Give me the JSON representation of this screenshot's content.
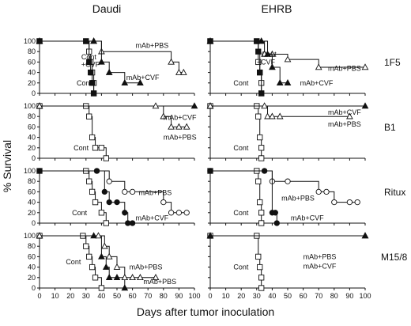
{
  "figure": {
    "column_titles": [
      "Daudi",
      "EHRB"
    ],
    "row_labels": [
      "1F5",
      "B1",
      "Ritux",
      "M15/8"
    ],
    "ylabel": "% Survival",
    "xlabel": "Days after tumor inoculation",
    "x_ticks": [
      "0",
      "10",
      "20",
      "30",
      "40",
      "50",
      "60",
      "70",
      "80",
      "90",
      "100"
    ],
    "y_ticks": [
      "0",
      "20",
      "40",
      "60",
      "80",
      "100"
    ]
  },
  "chart_data": [
    {
      "type": "line",
      "column": "Daudi",
      "row": "1F5",
      "xlim": [
        0,
        100
      ],
      "ylim": [
        0,
        100
      ],
      "series": [
        {
          "name": "Cont",
          "marker": "open-square",
          "x": [
            0,
            30,
            32,
            33,
            34,
            35,
            35
          ],
          "y": [
            100,
            100,
            80,
            60,
            40,
            20,
            0
          ]
        },
        {
          "name": "Cont +CVF",
          "marker": "filled-square",
          "x": [
            0,
            30,
            32,
            33,
            34,
            35
          ],
          "y": [
            100,
            100,
            60,
            40,
            20,
            0
          ]
        },
        {
          "name": "mAb+PBS",
          "marker": "open-triangle",
          "x": [
            0,
            35,
            40,
            85,
            90,
            93
          ],
          "y": [
            100,
            100,
            80,
            60,
            40,
            40
          ]
        },
        {
          "name": "mAb+CVF",
          "marker": "filled-triangle",
          "x": [
            0,
            35,
            40,
            45,
            55,
            65
          ],
          "y": [
            100,
            100,
            60,
            40,
            20,
            20
          ]
        }
      ],
      "labels": [
        {
          "text": "Cont",
          "x": 24,
          "y": 20
        },
        {
          "text": "Cont",
          "x": 27,
          "y": 70
        },
        {
          "text": "+CVF",
          "x": 27,
          "y": 55
        },
        {
          "text": "mAb+PBS",
          "x": 62,
          "y": 92
        },
        {
          "text": "mAb+CVF",
          "x": 56,
          "y": 30
        }
      ]
    },
    {
      "type": "line",
      "column": "EHRB",
      "row": "1F5",
      "xlim": [
        0,
        100
      ],
      "ylim": [
        0,
        100
      ],
      "series": [
        {
          "name": "Cont",
          "marker": "open-square",
          "x": [
            0,
            30,
            31,
            32,
            33,
            33
          ],
          "y": [
            100,
            100,
            60,
            40,
            20,
            0
          ]
        },
        {
          "name": "Cont +CVF",
          "marker": "filled-square",
          "x": [
            0,
            30,
            31,
            32,
            33
          ],
          "y": [
            100,
            100,
            80,
            40,
            0
          ]
        },
        {
          "name": "mAb+PBS",
          "marker": "open-triangle",
          "x": [
            0,
            33,
            35,
            40,
            50,
            70,
            100
          ],
          "y": [
            100,
            100,
            75,
            75,
            65,
            50,
            50
          ]
        },
        {
          "name": "mAb+CVF",
          "marker": "filled-triangle",
          "x": [
            0,
            33,
            37,
            40,
            45,
            50
          ],
          "y": [
            100,
            100,
            75,
            50,
            20,
            20
          ]
        }
      ],
      "labels": [
        {
          "text": "Cont",
          "x": 15,
          "y": 20
        },
        {
          "text": "Cont",
          "x": 33,
          "y": 75
        },
        {
          "text": "+CVF",
          "x": 30,
          "y": 60
        },
        {
          "text": "mAb+PBS",
          "x": 76,
          "y": 48
        },
        {
          "text": "mAb+CVF",
          "x": 58,
          "y": 20
        }
      ]
    },
    {
      "type": "line",
      "column": "Daudi",
      "row": "B1",
      "xlim": [
        0,
        100
      ],
      "ylim": [
        0,
        100
      ],
      "series": [
        {
          "name": "Cont",
          "marker": "open-square",
          "x": [
            0,
            30,
            32,
            34,
            36,
            40,
            43
          ],
          "y": [
            100,
            100,
            80,
            40,
            20,
            20,
            0
          ]
        },
        {
          "name": "mAb+CVF",
          "marker": "filled-triangle",
          "x": [
            0,
            100
          ],
          "y": [
            100,
            100
          ]
        },
        {
          "name": "mAb+PBS",
          "marker": "open-triangle",
          "x": [
            0,
            75,
            80,
            85,
            90,
            95
          ],
          "y": [
            100,
            100,
            80,
            60,
            60,
            60
          ]
        }
      ],
      "labels": [
        {
          "text": "Cont",
          "x": 22,
          "y": 20
        },
        {
          "text": "mAb+CVF",
          "x": 80,
          "y": 78
        },
        {
          "text": "mAb+PBS",
          "x": 80,
          "y": 40
        }
      ]
    },
    {
      "type": "line",
      "column": "EHRB",
      "row": "B1",
      "xlim": [
        0,
        100
      ],
      "ylim": [
        0,
        100
      ],
      "series": [
        {
          "name": "Cont",
          "marker": "open-square",
          "x": [
            0,
            30,
            31,
            32,
            33,
            33
          ],
          "y": [
            100,
            100,
            80,
            40,
            20,
            0
          ]
        },
        {
          "name": "mAb+CVF",
          "marker": "filled-triangle",
          "x": [
            0,
            100
          ],
          "y": [
            100,
            100
          ]
        },
        {
          "name": "mAb+PBS",
          "marker": "open-triangle",
          "x": [
            0,
            35,
            37,
            40,
            45,
            90
          ],
          "y": [
            100,
            100,
            80,
            80,
            80,
            80
          ]
        }
      ],
      "labels": [
        {
          "text": "Cont",
          "x": 15,
          "y": 20
        },
        {
          "text": "mAb+CVF",
          "x": 76,
          "y": 88
        },
        {
          "text": "mAb+PBS",
          "x": 76,
          "y": 65
        }
      ]
    },
    {
      "type": "line",
      "column": "Daudi",
      "row": "Ritux",
      "xlim": [
        0,
        100
      ],
      "ylim": [
        0,
        100
      ],
      "series": [
        {
          "name": "Cont",
          "marker": "open-square",
          "x": [
            0,
            30,
            32,
            34,
            36,
            40,
            43
          ],
          "y": [
            100,
            100,
            80,
            60,
            40,
            20,
            0
          ]
        },
        {
          "name": "mAb+PBS",
          "marker": "open-circle",
          "x": [
            0,
            37,
            45,
            55,
            60,
            80,
            85,
            90,
            95
          ],
          "y": [
            100,
            100,
            80,
            60,
            60,
            40,
            20,
            20,
            20
          ]
        },
        {
          "name": "mAb+CVF",
          "marker": "filled-circle",
          "x": [
            0,
            37,
            42,
            45,
            50,
            55,
            57,
            60
          ],
          "y": [
            100,
            100,
            60,
            40,
            40,
            20,
            0,
            0
          ]
        }
      ],
      "labels": [
        {
          "text": "Cont",
          "x": 21,
          "y": 20
        },
        {
          "text": "mAb+PBS",
          "x": 64,
          "y": 58
        },
        {
          "text": "mAb+CVF",
          "x": 62,
          "y": 10
        }
      ]
    },
    {
      "type": "line",
      "column": "EHRB",
      "row": "Ritux",
      "xlim": [
        0,
        100
      ],
      "ylim": [
        0,
        100
      ],
      "series": [
        {
          "name": "Cont",
          "marker": "open-square",
          "x": [
            0,
            30,
            31,
            32,
            33,
            33
          ],
          "y": [
            100,
            100,
            80,
            40,
            20,
            0
          ]
        },
        {
          "name": "mAb+PBS",
          "marker": "open-circle",
          "x": [
            0,
            35,
            40,
            50,
            70,
            75,
            80,
            90,
            95
          ],
          "y": [
            100,
            100,
            80,
            80,
            60,
            60,
            40,
            40,
            40
          ]
        },
        {
          "name": "mAb+CVF",
          "marker": "filled-circle",
          "x": [
            0,
            35,
            40,
            42,
            43
          ],
          "y": [
            100,
            100,
            20,
            20,
            0
          ]
        }
      ],
      "labels": [
        {
          "text": "Cont",
          "x": 15,
          "y": 20
        },
        {
          "text": "mAb+PBS",
          "x": 46,
          "y": 48
        },
        {
          "text": "mAb+CVF",
          "x": 52,
          "y": 10
        }
      ]
    },
    {
      "type": "line",
      "column": "Daudi",
      "row": "M15/8",
      "xlim": [
        0,
        100
      ],
      "ylim": [
        0,
        100
      ],
      "series": [
        {
          "name": "Cont",
          "marker": "open-square",
          "x": [
            0,
            28,
            30,
            32,
            34,
            36,
            40
          ],
          "y": [
            100,
            100,
            80,
            60,
            40,
            20,
            0
          ]
        },
        {
          "name": "mAb+PBS",
          "marker": "filled-triangle",
          "x": [
            0,
            35,
            40,
            43,
            45,
            50,
            55
          ],
          "y": [
            100,
            100,
            60,
            40,
            20,
            20,
            0
          ]
        },
        {
          "name": "mAb+PBS",
          "marker": "open-triangle",
          "x": [
            0,
            38,
            42,
            45,
            50,
            55,
            60,
            65,
            75
          ],
          "y": [
            100,
            100,
            80,
            60,
            40,
            20,
            20,
            20,
            20
          ]
        }
      ],
      "labels": [
        {
          "text": "Cont",
          "x": 17,
          "y": 50
        },
        {
          "text": "mAb+PBS",
          "x": 58,
          "y": 40
        },
        {
          "text": "mAb+PBS",
          "x": 67,
          "y": 12
        }
      ]
    },
    {
      "type": "line",
      "column": "EHRB",
      "row": "M15/8",
      "xlim": [
        0,
        100
      ],
      "ylim": [
        0,
        100
      ],
      "series": [
        {
          "name": "Cont",
          "marker": "open-square",
          "x": [
            0,
            30,
            31,
            32,
            33,
            33
          ],
          "y": [
            100,
            100,
            60,
            40,
            20,
            0
          ]
        },
        {
          "name": "mAb+PBS",
          "marker": "open-triangle",
          "x": [
            0,
            100
          ],
          "y": [
            100,
            100
          ]
        },
        {
          "name": "mAb+CVF",
          "marker": "filled-triangle",
          "x": [
            0,
            100
          ],
          "y": [
            100,
            100
          ]
        }
      ],
      "labels": [
        {
          "text": "Cont",
          "x": 15,
          "y": 40
        },
        {
          "text": "mAb+PBS",
          "x": 60,
          "y": 60
        },
        {
          "text": "mAb+CVF",
          "x": 60,
          "y": 42
        }
      ]
    }
  ]
}
